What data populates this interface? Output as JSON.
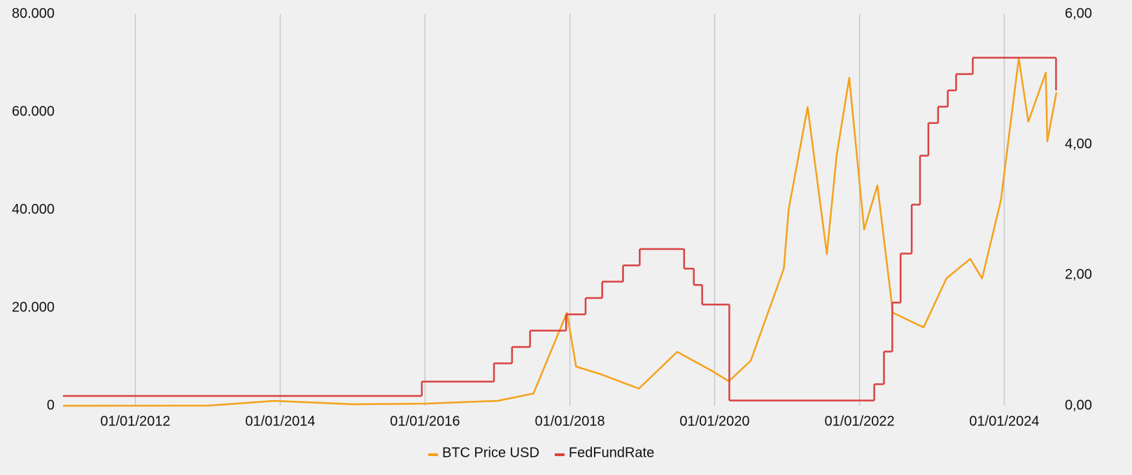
{
  "chart_data": {
    "type": "line",
    "xlim": [
      "01/01/2011",
      "20/09/2024"
    ],
    "xticks": [
      "01/01/2012",
      "01/01/2014",
      "01/01/2016",
      "01/01/2018",
      "01/01/2020",
      "01/01/2022",
      "01/01/2024"
    ],
    "ylim": [
      0,
      80000
    ],
    "yticks": [
      {
        "value": 0,
        "label": "0"
      },
      {
        "value": 20000,
        "label": "20.000"
      },
      {
        "value": 40000,
        "label": "40.000"
      },
      {
        "value": 60000,
        "label": "60.000"
      },
      {
        "value": 80000,
        "label": "80.000"
      }
    ],
    "y2lim": [
      0,
      6
    ],
    "y2ticks": [
      {
        "value": 0,
        "label": "0,00"
      },
      {
        "value": 2,
        "label": "2,00"
      },
      {
        "value": 4,
        "label": "4,00"
      },
      {
        "value": 6,
        "label": "6,00"
      }
    ],
    "grid": "x",
    "legend": "bottom",
    "series": [
      {
        "name": "BTC Price USD",
        "color": "#f5a11b",
        "x": [
          "01/01/2011",
          "01/01/2013",
          "01/12/2013",
          "01/01/2015",
          "01/01/2016",
          "01/01/2017",
          "01/07/2017",
          "17/12/2017",
          "01/02/2018",
          "01/06/2018",
          "15/12/2018",
          "26/06/2019",
          "15/12/2019",
          "13/03/2020",
          "01/07/2020",
          "15/12/2020",
          "08/01/2021",
          "14/04/2021",
          "20/07/2021",
          "07/09/2021",
          "10/11/2021",
          "24/01/2022",
          "01/04/2022",
          "18/06/2022",
          "20/11/2022",
          "15/03/2023",
          "13/07/2023",
          "11/09/2023",
          "15/12/2023",
          "14/03/2024",
          "01/05/2024",
          "28/07/2024",
          "05/08/2024",
          "20/09/2024"
        ],
        "values": [
          0.3,
          13,
          1000,
          300,
          430,
          1000,
          2500,
          19000,
          8000,
          6500,
          3500,
          11000,
          7200,
          5000,
          9200,
          28000,
          40000,
          61000,
          31000,
          51000,
          67000,
          36000,
          45000,
          19000,
          16000,
          26000,
          30000,
          26000,
          42000,
          71000,
          58000,
          68000,
          54000,
          64000
        ]
      },
      {
        "name": "FedFundRate",
        "color": "#d94141",
        "axis": "y2",
        "step": "after",
        "x": [
          "01/01/2011",
          "16/12/2015",
          "14/12/2016",
          "15/03/2017",
          "14/06/2017",
          "13/12/2017",
          "21/03/2018",
          "13/06/2018",
          "26/09/2018",
          "19/12/2018",
          "31/07/2019",
          "18/09/2019",
          "30/10/2019",
          "15/03/2020",
          "16/03/2022",
          "04/05/2022",
          "15/06/2022",
          "27/07/2022",
          "21/09/2022",
          "02/11/2022",
          "14/12/2022",
          "01/02/2023",
          "22/03/2023",
          "03/05/2023",
          "26/07/2023",
          "18/09/2024"
        ],
        "values": [
          0.15,
          0.37,
          0.65,
          0.9,
          1.15,
          1.4,
          1.65,
          1.9,
          2.15,
          2.4,
          2.1,
          1.85,
          1.55,
          0.08,
          0.33,
          0.83,
          1.58,
          2.33,
          3.08,
          3.83,
          4.33,
          4.58,
          4.83,
          5.08,
          5.33,
          4.83
        ]
      }
    ]
  }
}
